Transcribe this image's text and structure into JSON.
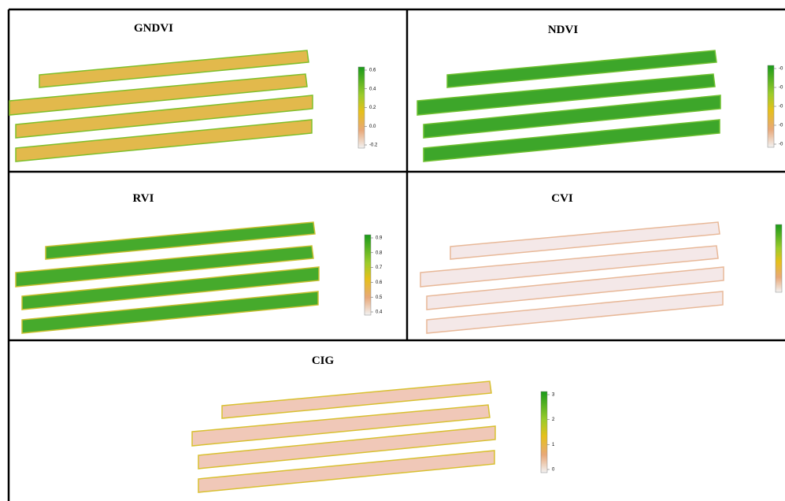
{
  "panels": [
    {
      "title": "GNDVI",
      "ticks": [
        "0.6",
        "0.4",
        "0.2",
        "0.0",
        "-0.2"
      ]
    },
    {
      "title": "NDVI",
      "ticks": [
        "-0",
        "-0",
        "-0",
        "-0",
        "-0"
      ]
    },
    {
      "title": "RVI",
      "ticks": [
        "0.9",
        "0.8",
        "0.7",
        "0.6",
        "0.5",
        "0.4"
      ]
    },
    {
      "title": "CVI",
      "ticks": []
    },
    {
      "title": "CIG",
      "ticks": [
        "3",
        "2",
        "1",
        "0"
      ]
    }
  ]
}
